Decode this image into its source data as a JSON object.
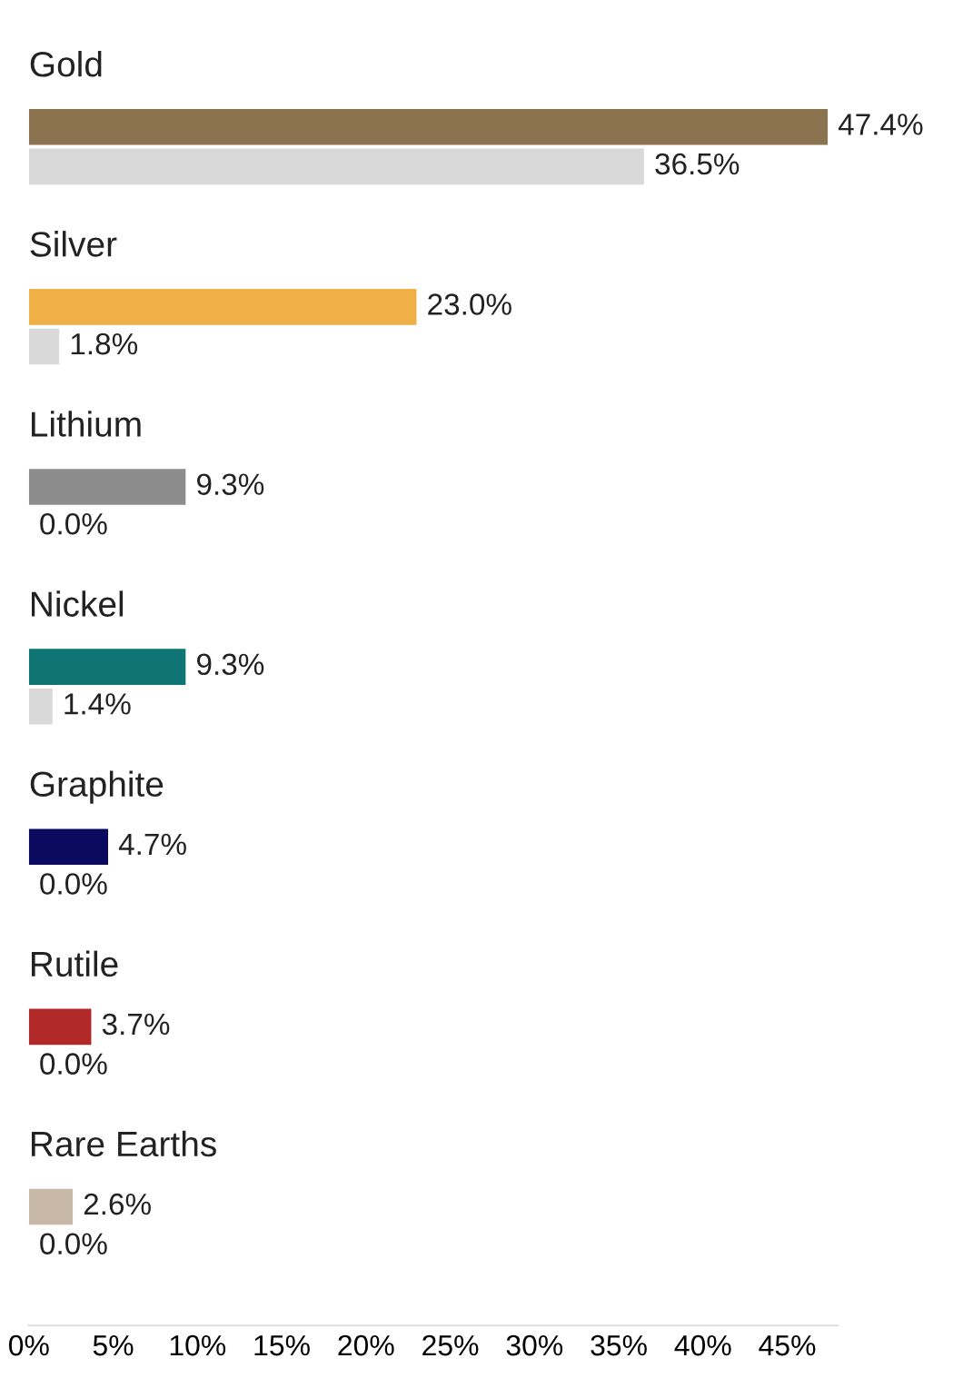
{
  "chart_data": {
    "type": "bar",
    "orientation": "horizontal",
    "categories": [
      "Gold",
      "Silver",
      "Lithium",
      "Nickel",
      "Graphite",
      "Rutile",
      "Rare Earths"
    ],
    "series": [
      {
        "colors": [
          "#8c7350",
          "#f0b048",
          "#8c8c8c",
          "#0e7474",
          "#0a0a5e",
          "#b02828",
          "#c8b8a8"
        ],
        "values": [
          47.4,
          23.0,
          9.3,
          9.3,
          4.7,
          3.7,
          2.6
        ],
        "value_labels": [
          "47.4%",
          "23.0%",
          "9.3%",
          "9.3%",
          "4.7%",
          "3.7%",
          "2.6%"
        ]
      },
      {
        "color": "#d9d9d9",
        "values": [
          36.5,
          1.8,
          0.0,
          1.4,
          0.0,
          0.0,
          0.0
        ],
        "value_labels": [
          "36.5%",
          "1.8%",
          "0.0%",
          "1.4%",
          "0.0%",
          "0.0%",
          "0.0%"
        ]
      }
    ],
    "xlim": [
      0,
      48
    ],
    "xticks": [
      {
        "value": 0,
        "label": "0%"
      },
      {
        "value": 5,
        "label": "5%"
      },
      {
        "value": 10,
        "label": "10%"
      },
      {
        "value": 15,
        "label": "15%"
      },
      {
        "value": 20,
        "label": "20%"
      },
      {
        "value": 25,
        "label": "25%"
      },
      {
        "value": 30,
        "label": "30%"
      },
      {
        "value": 35,
        "label": "35%"
      },
      {
        "value": 40,
        "label": "40%"
      },
      {
        "value": 45,
        "label": "45%"
      }
    ],
    "grid": false
  }
}
